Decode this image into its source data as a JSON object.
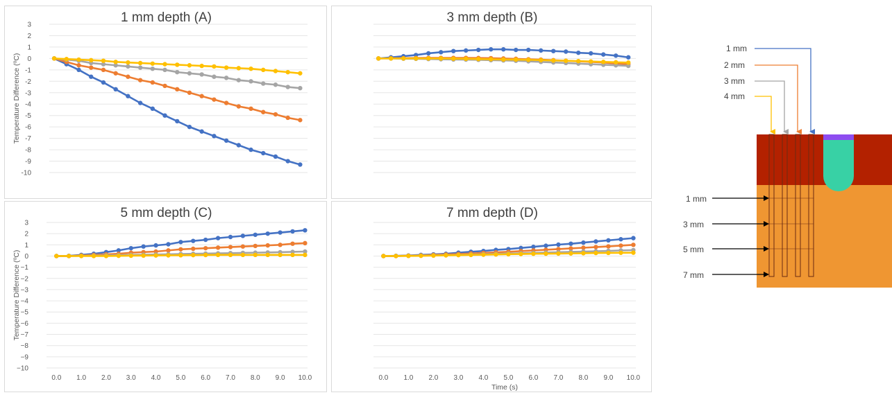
{
  "colors": {
    "blue": "#4472c4",
    "orange": "#ed7d31",
    "gray": "#a5a5a5",
    "yellow": "#ffc000",
    "grid": "#e6e6e6",
    "top_layer": "#b32100",
    "bottom_layer": "#ef9632",
    "insert": "#38d1a5",
    "insert_cap": "#8e4df0"
  },
  "chart_data": [
    {
      "type": "line",
      "title": "1 mm depth (A)",
      "ylabel": "Temperature Difference (ºC)",
      "xlabel": "",
      "ylim": [
        -11,
        3
      ],
      "yticks": [
        "3",
        "2",
        "1",
        "0",
        "-1",
        "-2",
        "-3",
        "-4",
        "-5",
        "-6",
        "-7",
        "-8",
        "-9",
        "-10"
      ],
      "xticks": [],
      "x": [
        0,
        0.5,
        1,
        1.5,
        2,
        2.5,
        3,
        3.5,
        4,
        4.5,
        5,
        5.5,
        6,
        6.5,
        7,
        7.5,
        8,
        8.5,
        9,
        9.5,
        10
      ],
      "series": [
        {
          "color": "#4472c4",
          "values": [
            0,
            -0.5,
            -1.0,
            -1.6,
            -2.1,
            -2.7,
            -3.3,
            -3.9,
            -4.4,
            -5.0,
            -5.5,
            -6.0,
            -6.4,
            -6.8,
            -7.2,
            -7.6,
            -8.0,
            -8.3,
            -8.6,
            -9.0,
            -9.3
          ]
        },
        {
          "color": "#ed7d31",
          "values": [
            0,
            -0.3,
            -0.6,
            -0.8,
            -1.0,
            -1.3,
            -1.6,
            -1.9,
            -2.1,
            -2.4,
            -2.7,
            -3.0,
            -3.3,
            -3.6,
            -3.9,
            -4.2,
            -4.4,
            -4.7,
            -4.9,
            -5.2,
            -5.4
          ]
        },
        {
          "color": "#a5a5a5",
          "values": [
            0,
            -0.1,
            -0.2,
            -0.4,
            -0.5,
            -0.6,
            -0.7,
            -0.8,
            -0.9,
            -1.0,
            -1.2,
            -1.3,
            -1.4,
            -1.6,
            -1.7,
            -1.9,
            -2.0,
            -2.2,
            -2.3,
            -2.5,
            -2.6
          ]
        },
        {
          "color": "#ffc000",
          "values": [
            0,
            -0.05,
            -0.1,
            -0.15,
            -0.2,
            -0.3,
            -0.35,
            -0.4,
            -0.45,
            -0.5,
            -0.55,
            -0.6,
            -0.65,
            -0.7,
            -0.8,
            -0.85,
            -0.9,
            -1.0,
            -1.1,
            -1.2,
            -1.3
          ]
        }
      ]
    },
    {
      "type": "line",
      "title": "3 mm depth (B)",
      "ylabel": "",
      "xlabel": "",
      "ylim": [
        -11,
        3
      ],
      "yticks": [],
      "xticks": [],
      "x": [
        0,
        0.5,
        1,
        1.5,
        2,
        2.5,
        3,
        3.5,
        4,
        4.5,
        5,
        5.5,
        6,
        6.5,
        7,
        7.5,
        8,
        8.5,
        9,
        9.5,
        10
      ],
      "series": [
        {
          "color": "#4472c4",
          "values": [
            0,
            0.1,
            0.2,
            0.3,
            0.45,
            0.55,
            0.65,
            0.7,
            0.75,
            0.8,
            0.8,
            0.75,
            0.75,
            0.7,
            0.65,
            0.6,
            0.5,
            0.45,
            0.35,
            0.25,
            0.1
          ]
        },
        {
          "color": "#ed7d31",
          "values": [
            0,
            0.02,
            0.03,
            0.04,
            0.05,
            0.05,
            0.05,
            0.05,
            0.04,
            0.03,
            0.0,
            -0.03,
            -0.07,
            -0.1,
            -0.15,
            -0.2,
            -0.25,
            -0.3,
            -0.35,
            -0.45,
            -0.5
          ]
        },
        {
          "color": "#a5a5a5",
          "values": [
            0,
            0.0,
            -0.02,
            -0.03,
            -0.05,
            -0.07,
            -0.09,
            -0.1,
            -0.12,
            -0.15,
            -0.17,
            -0.2,
            -0.25,
            -0.3,
            -0.35,
            -0.4,
            -0.45,
            -0.5,
            -0.55,
            -0.6,
            -0.65
          ]
        },
        {
          "color": "#ffc000",
          "values": [
            0,
            0.0,
            0.0,
            0.0,
            0.0,
            0.0,
            -0.02,
            -0.03,
            -0.05,
            -0.07,
            -0.09,
            -0.1,
            -0.12,
            -0.15,
            -0.18,
            -0.2,
            -0.23,
            -0.26,
            -0.3,
            -0.33,
            -0.36
          ]
        }
      ]
    },
    {
      "type": "line",
      "title": "5 mm depth (C)",
      "ylabel": "Temperature Difference (ºC)",
      "xlabel": "",
      "ylim": [
        -10,
        3
      ],
      "yticks": [
        "3",
        "2",
        "1",
        "0",
        "−1",
        "−2",
        "−3",
        "−4",
        "−5",
        "−6",
        "−7",
        "−8",
        "−9",
        "−10"
      ],
      "xticks": [
        "0.0",
        "1.0",
        "2.0",
        "3.0",
        "4.0",
        "5.0",
        "6.0",
        "7.0",
        "8.0",
        "9.0",
        "10.0"
      ],
      "x": [
        0,
        0.5,
        1,
        1.5,
        2,
        2.5,
        3,
        3.5,
        4,
        4.5,
        5,
        5.5,
        6,
        6.5,
        7,
        7.5,
        8,
        8.5,
        9,
        9.5,
        10
      ],
      "series": [
        {
          "color": "#4472c4",
          "values": [
            0,
            0.02,
            0.1,
            0.2,
            0.35,
            0.5,
            0.7,
            0.85,
            0.95,
            1.05,
            1.25,
            1.35,
            1.45,
            1.6,
            1.7,
            1.8,
            1.9,
            2.0,
            2.1,
            2.2,
            2.3
          ]
        },
        {
          "color": "#ed7d31",
          "values": [
            0,
            0.0,
            0.05,
            0.1,
            0.15,
            0.2,
            0.3,
            0.35,
            0.4,
            0.5,
            0.6,
            0.65,
            0.7,
            0.75,
            0.8,
            0.85,
            0.9,
            0.95,
            1.0,
            1.1,
            1.15
          ]
        },
        {
          "color": "#a5a5a5",
          "values": [
            0,
            0.0,
            0.02,
            0.04,
            0.06,
            0.08,
            0.1,
            0.12,
            0.14,
            0.16,
            0.18,
            0.2,
            0.22,
            0.24,
            0.26,
            0.28,
            0.3,
            0.32,
            0.34,
            0.37,
            0.4
          ]
        },
        {
          "color": "#ffc000",
          "values": [
            0,
            0.0,
            0.0,
            0.0,
            0.0,
            0.02,
            0.03,
            0.04,
            0.05,
            0.06,
            0.07,
            0.08,
            0.09,
            0.1,
            0.1,
            0.1,
            0.1,
            0.1,
            0.1,
            0.1,
            0.1
          ]
        }
      ]
    },
    {
      "type": "line",
      "title": "7 mm depth (D)",
      "ylabel": "",
      "xlabel": "Time (s)",
      "ylim": [
        -10,
        3
      ],
      "yticks": [],
      "xticks": [
        "0.0",
        "1.0",
        "2.0",
        "3.0",
        "4.0",
        "5.0",
        "6.0",
        "7.0",
        "8.0",
        "9.0",
        "10.0"
      ],
      "x": [
        0,
        0.5,
        1,
        1.5,
        2,
        2.5,
        3,
        3.5,
        4,
        4.5,
        5,
        5.5,
        6,
        6.5,
        7,
        7.5,
        8,
        8.5,
        9,
        9.5,
        10
      ],
      "series": [
        {
          "color": "#4472c4",
          "values": [
            0,
            0.02,
            0.05,
            0.1,
            0.15,
            0.2,
            0.3,
            0.38,
            0.45,
            0.55,
            0.62,
            0.72,
            0.82,
            0.92,
            1.02,
            1.1,
            1.2,
            1.3,
            1.4,
            1.5,
            1.6
          ]
        },
        {
          "color": "#ed7d31",
          "values": [
            0,
            0.0,
            0.03,
            0.06,
            0.1,
            0.14,
            0.18,
            0.23,
            0.28,
            0.33,
            0.38,
            0.44,
            0.5,
            0.56,
            0.62,
            0.68,
            0.74,
            0.8,
            0.86,
            0.93,
            1.0
          ]
        },
        {
          "color": "#a5a5a5",
          "values": [
            0,
            0.0,
            0.02,
            0.04,
            0.06,
            0.08,
            0.1,
            0.13,
            0.16,
            0.19,
            0.22,
            0.25,
            0.28,
            0.31,
            0.34,
            0.37,
            0.4,
            0.43,
            0.46,
            0.5,
            0.53
          ]
        },
        {
          "color": "#ffc000",
          "values": [
            0,
            0.0,
            0.01,
            0.02,
            0.04,
            0.06,
            0.08,
            0.1,
            0.12,
            0.14,
            0.16,
            0.18,
            0.2,
            0.21,
            0.22,
            0.23,
            0.25,
            0.27,
            0.28,
            0.29,
            0.3
          ]
        }
      ]
    }
  ],
  "diagram": {
    "probe_labels": [
      "1 mm",
      "2 mm",
      "3 mm",
      "4 mm"
    ],
    "depth_labels": [
      "1 mm",
      "3 mm",
      "5 mm",
      "7 mm"
    ]
  }
}
